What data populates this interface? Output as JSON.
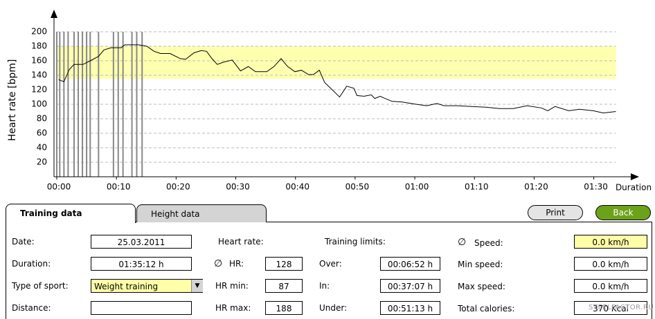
{
  "chart_data": {
    "type": "line",
    "ylabel": "Heart rate [bpm]",
    "xlabel": "Duration",
    "ylim": [
      0,
      200
    ],
    "yticks": [
      20,
      40,
      60,
      80,
      100,
      120,
      140,
      160,
      180,
      200
    ],
    "grid": true,
    "xlim": [
      0,
      95.5
    ],
    "xticks": [
      {
        "value": 0,
        "label": "00:00"
      },
      {
        "value": 10,
        "label": "00:10"
      },
      {
        "value": 20,
        "label": "00:20"
      },
      {
        "value": 30,
        "label": "00:30"
      },
      {
        "value": 40,
        "label": "00:40"
      },
      {
        "value": 50,
        "label": "00:50"
      },
      {
        "value": 60,
        "label": "01:00"
      },
      {
        "value": 70,
        "label": "01:10"
      },
      {
        "value": 80,
        "label": "01:20"
      },
      {
        "value": 90,
        "label": "01:30"
      }
    ],
    "zone": [
      135,
      180
    ],
    "zone_color": "#ffffb0",
    "marker_color": "#888888",
    "markers": [
      0,
      0.5,
      1.2,
      1.9,
      2.9,
      3.6,
      4.3,
      5,
      5.6,
      7,
      9.5,
      10.3,
      11.1,
      12.6,
      13.4,
      14.3
    ],
    "series": [
      {
        "name": "Heart rate",
        "color": "#000000",
        "x": [
          0.3,
          1.2,
          2.1,
          2.9,
          4.4,
          5.6,
          7,
          7.9,
          9.1,
          10.8,
          11.4,
          13.7,
          15.1,
          16.3,
          17.4,
          19,
          20.7,
          21.6,
          23,
          24.2,
          25.1,
          26,
          26.9,
          27.9,
          29.4,
          30.8,
          32.1,
          33.3,
          35.2,
          36.4,
          37.6,
          38.7,
          39.9,
          41,
          42.2,
          43,
          44,
          44.9,
          45.9,
          46.9,
          47.4,
          48.6,
          49.8,
          50.3,
          51.5,
          52.7,
          53.3,
          54.2,
          55,
          56.2,
          57.9,
          60.2,
          62,
          63.7,
          64.9,
          67.2,
          69.5,
          71.9,
          74.2,
          76.5,
          78.8,
          81.2,
          82.3,
          83.5,
          85.8,
          87.6,
          89.9,
          91.6,
          93.7
        ],
        "values": [
          134,
          131,
          148,
          155,
          155,
          160,
          166,
          175,
          178,
          178,
          182,
          182,
          180,
          173,
          170,
          170,
          163,
          162,
          171,
          174,
          173,
          163,
          155,
          158,
          161,
          146,
          152,
          145,
          145,
          152,
          163,
          152,
          145,
          147,
          141,
          141,
          147,
          130,
          122,
          114,
          110,
          125,
          122,
          112,
          111,
          113,
          108,
          111,
          108,
          104,
          103,
          100,
          98,
          101,
          98,
          98,
          97,
          96,
          94,
          94,
          98,
          95,
          91,
          97,
          91,
          93,
          91,
          88,
          90
        ]
      }
    ]
  },
  "tabs": [
    "Training data",
    "Height data"
  ],
  "buttons": {
    "print": "Print",
    "back": "Back"
  },
  "form": {
    "avg_symbol": "∅",
    "date": {
      "label": "Date:",
      "value": "25.03.2011"
    },
    "duration": {
      "label": "Duration:",
      "value": "01:35:12 h"
    },
    "sport": {
      "label": "Type of sport:",
      "value": "Weight training"
    },
    "distance": {
      "label": "Distance:"
    },
    "heart_rate": {
      "label": "Heart rate:"
    },
    "hr": {
      "label": "HR:",
      "value": "128"
    },
    "hr_min": {
      "label": "HR min:",
      "value": "87"
    },
    "hr_max": {
      "label": "HR max:",
      "value": "188"
    },
    "limits": {
      "label": "Training limits:"
    },
    "over": {
      "label": "Over:",
      "value": "00:06:52 h"
    },
    "in": {
      "label": "In:",
      "value": "00:37:07 h"
    },
    "under": {
      "label": "Under:",
      "value": "00:51:13 h"
    },
    "speed": {
      "label": "Speed:",
      "value": "0.0 km/h"
    },
    "min_speed": {
      "label": "Min speed:",
      "value": "0.0 km/h"
    },
    "max_speed": {
      "label": "Max speed:",
      "value": "0.0 km/h"
    },
    "calories": {
      "label": "Total calories:",
      "value": "370 Kcal"
    }
  },
  "watermark": "STEELFACTOR.RU"
}
